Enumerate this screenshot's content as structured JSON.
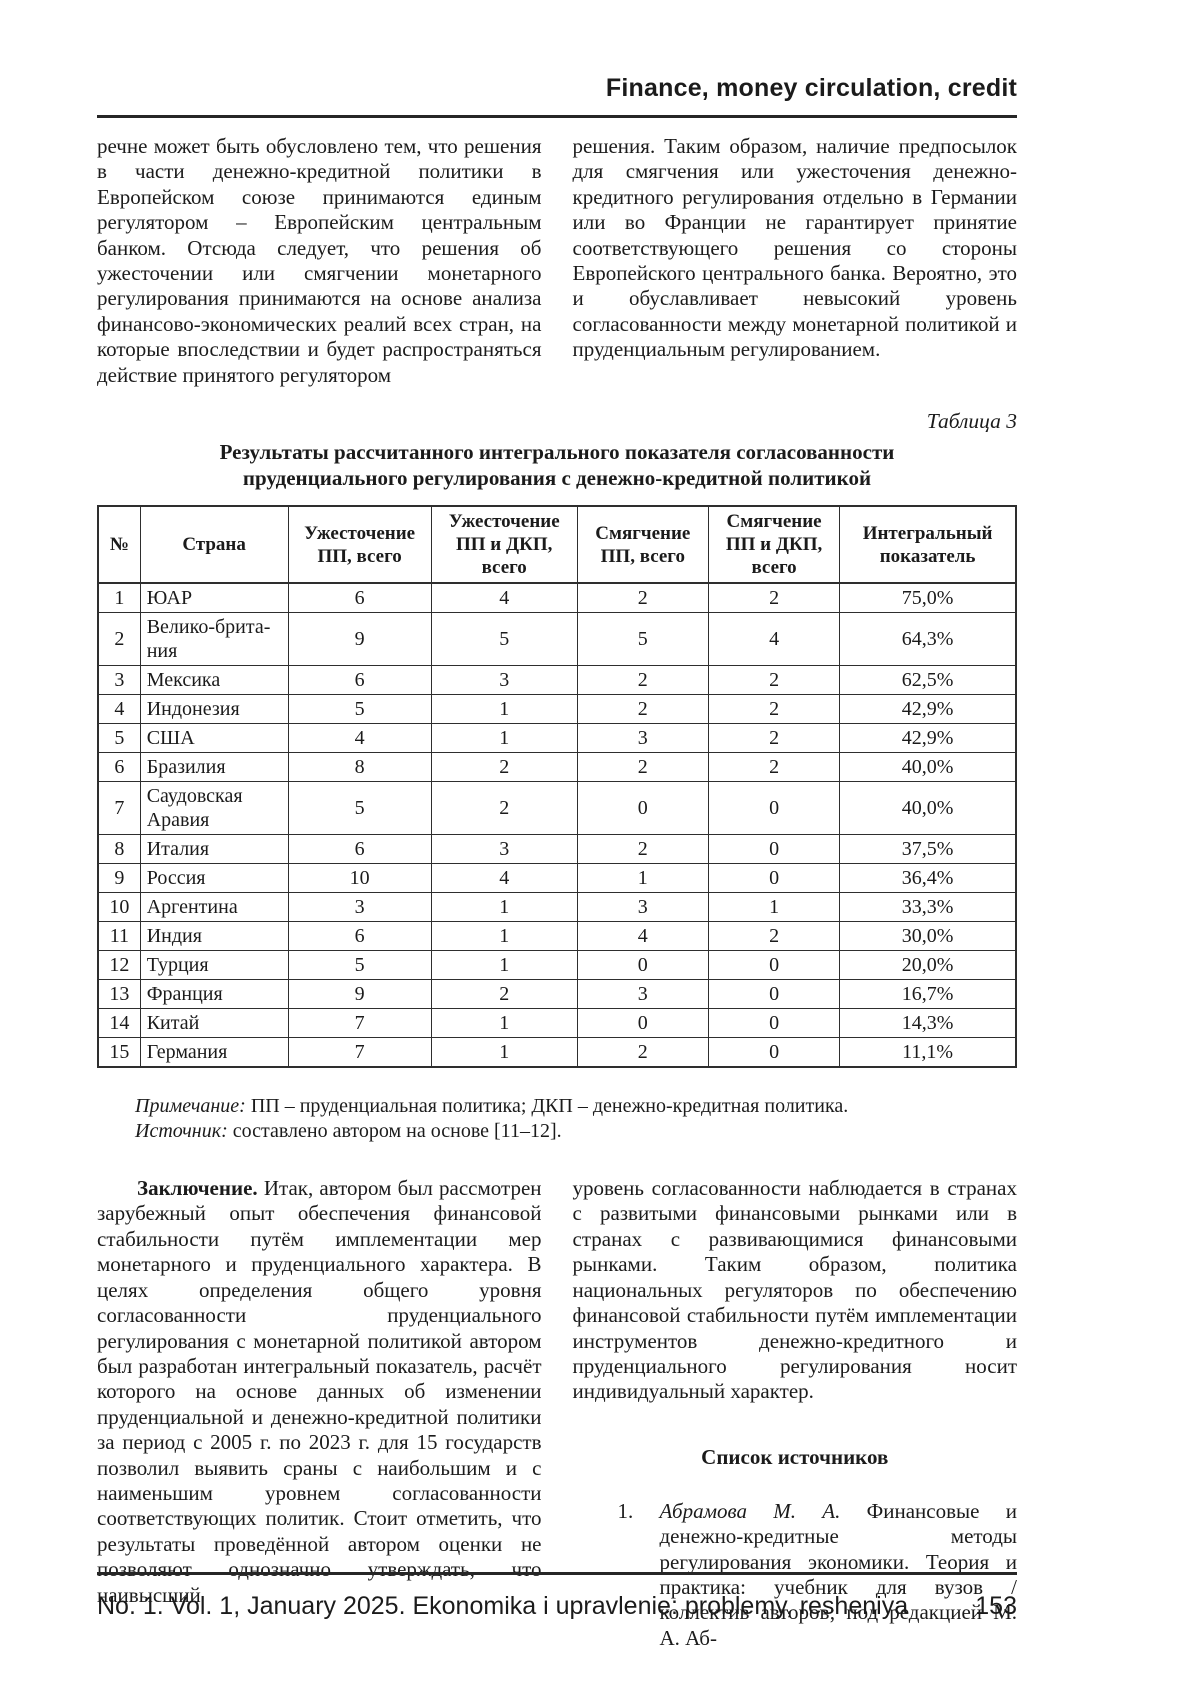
{
  "header": {
    "section_title": "Finance, money circulation, credit"
  },
  "intro": {
    "left_paragraph": "речне может быть обусловлено тем, что решения в части денежно-кредитной политики в Европейском союзе принимаются единым регулятором – Европейским центральным банком. Отсюда следует, что решения об ужесточении или смягчении монетарного регулирования принимаются на основе анализа финансово-экономических реалий всех стран, на которые впоследствии и будет распространяться действие принятого регулятором",
    "right_paragraph": "решения. Таким образом, наличие предпосылок для смягчения или ужесточения денежно-кредитного регулирования отдельно в Германии или во Франции не гарантирует принятие соответствующего решения со стороны Европейского центрального банка. Вероятно, это и обуславливает невысокий уровень согласованности между монетарной политикой и пруденциальным регулированием."
  },
  "table": {
    "caption": "Таблица 3",
    "title_line1": "Результаты рассчитанного интегрального показателя согласованности",
    "title_line2": "пруденциального регулирования с денежно-кредитной политикой",
    "columns": [
      "№",
      "Страна",
      "Ужесточение ПП, всего",
      "Ужесточение ПП и ДКП, всего",
      "Смягчение ПП, всего",
      "Смягчение ПП и ДКП, всего",
      "Интегральный показатель"
    ],
    "rows": [
      [
        "1",
        "ЮАР",
        "6",
        "4",
        "2",
        "2",
        "75,0%"
      ],
      [
        "2",
        "Велико-брита-\nния",
        "9",
        "5",
        "5",
        "4",
        "64,3%"
      ],
      [
        "3",
        "Мексика",
        "6",
        "3",
        "2",
        "2",
        "62,5%"
      ],
      [
        "4",
        "Индонезия",
        "5",
        "1",
        "2",
        "2",
        "42,9%"
      ],
      [
        "5",
        "США",
        "4",
        "1",
        "3",
        "2",
        "42,9%"
      ],
      [
        "6",
        "Бразилия",
        "8",
        "2",
        "2",
        "2",
        "40,0%"
      ],
      [
        "7",
        "Саудовская\nАравия",
        "5",
        "2",
        "0",
        "0",
        "40,0%"
      ],
      [
        "8",
        "Италия",
        "6",
        "3",
        "2",
        "0",
        "37,5%"
      ],
      [
        "9",
        "Россия",
        "10",
        "4",
        "1",
        "0",
        "36,4%"
      ],
      [
        "10",
        "Аргентина",
        "3",
        "1",
        "3",
        "1",
        "33,3%"
      ],
      [
        "11",
        "Индия",
        "6",
        "1",
        "4",
        "2",
        "30,0%"
      ],
      [
        "12",
        "Турция",
        "5",
        "1",
        "0",
        "0",
        "20,0%"
      ],
      [
        "13",
        "Франция",
        "9",
        "2",
        "3",
        "0",
        "16,7%"
      ],
      [
        "14",
        "Китай",
        "7",
        "1",
        "0",
        "0",
        "14,3%"
      ],
      [
        "15",
        "Германия",
        "7",
        "1",
        "2",
        "0",
        "11,1%"
      ]
    ]
  },
  "notes": {
    "note_label": "Примечание:",
    "note_text": "ПП – пруденциальная политика; ДКП – денежно-кредитная политика.",
    "source_label": "Источник:",
    "source_text": "составлено автором на основе [11–12]."
  },
  "conclusion": {
    "heading": "Заключение.",
    "left_text": "Итак, автором был рассмотрен зарубежный опыт обеспечения финансовой стабильности путём имплементации мер монетарного и пруденциального характера. В целях определения общего уровня согласованности пруденциального регулирования с монетарной политикой автором был разработан интегральный показатель, расчёт которого на основе данных об изменении пруденциальной и денежно-кредитной политики за период с 2005 г. по 2023 г. для 15 государств позволил выявить сраны с наибольшим и с наименьшим уровнем согласованности соответствующих политик. Стоит отметить, что результаты проведённой автором оценки не позволяют однозначно утверждать, что наивысший",
    "right_text": "уровень согласованности наблюдается в странах с развитыми финансовыми рынками или в странах с развивающимися финансовыми рынками. Таким образом, политика национальных регуляторов по обеспечению финансовой стабильности путём имплементации инструментов денежно-кредитного и пруденциального регулирования носит индивидуальный характер."
  },
  "references": {
    "heading": "Список источников",
    "items": [
      {
        "number": "1.",
        "author": "Абрамова М. А.",
        "text": "Финансовые и денежно-кредитные методы регулирования экономики. Теория и практика: учебник для вузов / коллектив авторов; под редакцией М. А. Аб-"
      }
    ]
  },
  "footer": {
    "issue_line": "No. 1. Vol. 1, January 2025. Ekonomika i upravlenie: problemy, resheniya",
    "page_number": "153"
  }
}
